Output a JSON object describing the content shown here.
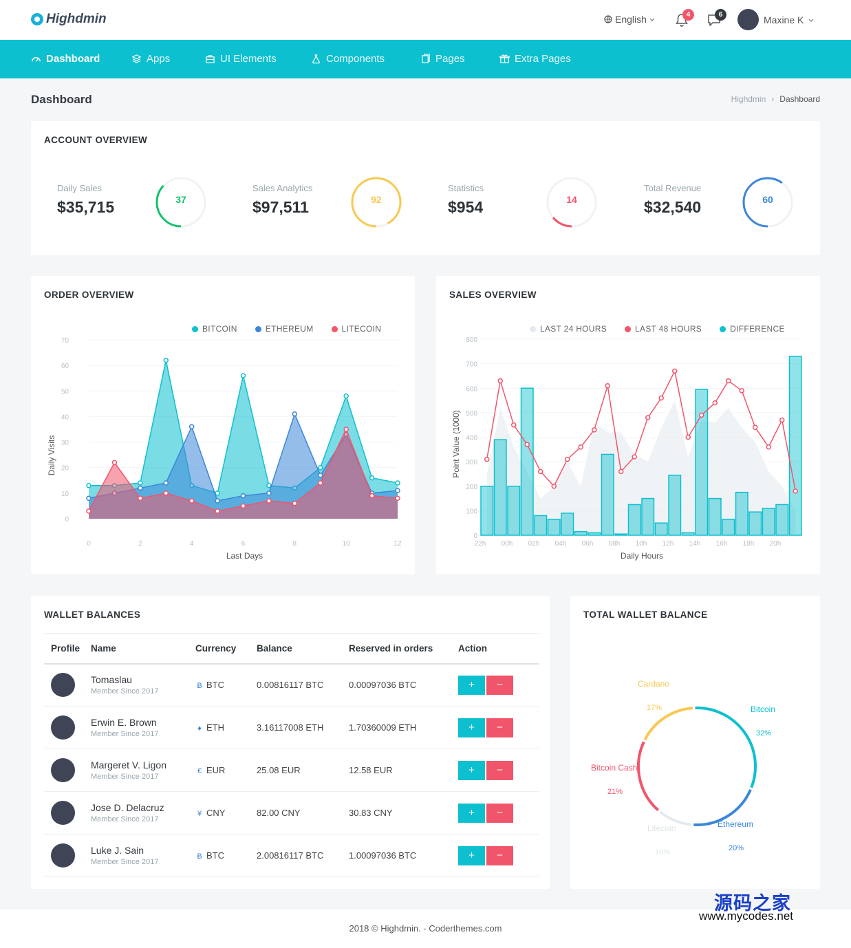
{
  "header": {
    "logo": "Highdmin",
    "language": "English",
    "notifications_count": "4",
    "messages_count": "6",
    "user_name": "Maxine K"
  },
  "nav": [
    {
      "label": "Dashboard",
      "icon": "speedometer-icon",
      "active": true
    },
    {
      "label": "Apps",
      "icon": "layers-icon"
    },
    {
      "label": "UI Elements",
      "icon": "briefcase-icon"
    },
    {
      "label": "Components",
      "icon": "flask-icon"
    },
    {
      "label": "Pages",
      "icon": "documents-icon"
    },
    {
      "label": "Extra Pages",
      "icon": "gift-icon"
    }
  ],
  "page": {
    "title": "Dashboard",
    "breadcrumb": [
      "Highdmin",
      "Dashboard"
    ]
  },
  "account": {
    "title": "ACCOUNT OVERVIEW",
    "stats": [
      {
        "label": "Daily Sales",
        "value": "$35,715",
        "percent": 37,
        "percent_label": "37",
        "color": "#10c469"
      },
      {
        "label": "Sales Analytics",
        "value": "$97,511",
        "percent": 92,
        "percent_label": "92",
        "color": "#f9c851"
      },
      {
        "label": "Statistics",
        "value": "$954",
        "percent": 14,
        "percent_label": "14",
        "color": "#f1556c"
      },
      {
        "label": "Total Revenue",
        "value": "$32,540",
        "percent": 60,
        "percent_label": "60",
        "color": "#3c86d8"
      }
    ]
  },
  "order": {
    "title": "ORDER OVERVIEW",
    "chart_data": {
      "type": "area",
      "xlabel": "Last Days",
      "ylabel": "Daily Visits",
      "ylim": [
        0,
        70
      ],
      "xlim": [
        0,
        12
      ],
      "y_ticks": [
        "0",
        "10",
        "20",
        "30",
        "40",
        "50",
        "60",
        "70"
      ],
      "x_ticks": [
        "0",
        "2",
        "4",
        "6",
        "8",
        "10",
        "12"
      ],
      "legend_position": "top-right",
      "x": [
        0,
        1,
        2,
        3,
        4,
        5,
        6,
        7,
        8,
        9,
        10,
        11,
        12
      ],
      "series": [
        {
          "name": "BITCOIN",
          "color": "#0dc0cf",
          "values": [
            13,
            13,
            14,
            62,
            13,
            10,
            56,
            13,
            12,
            20,
            48,
            16,
            14
          ]
        },
        {
          "name": "ETHEREUM",
          "color": "#3c86d8",
          "values": [
            8,
            10,
            12,
            14,
            36,
            7,
            9,
            10,
            41,
            17,
            33,
            10,
            11
          ]
        },
        {
          "name": "LITECOIN",
          "color": "#f1556c",
          "values": [
            3,
            22,
            8,
            10,
            7,
            3,
            5,
            7,
            6,
            14,
            35,
            9,
            8
          ]
        }
      ]
    }
  },
  "sales": {
    "title": "SALES OVERVIEW",
    "chart_data": {
      "type": "bar",
      "xlabel": "Daily Hours",
      "ylabel": "Point Value (1000)",
      "ylim": [
        0,
        800
      ],
      "y_ticks": [
        "0",
        "100",
        "200",
        "300",
        "400",
        "500",
        "600",
        "700",
        "800"
      ],
      "x_ticks": [
        "22h",
        "00h",
        "02h",
        "04h",
        "06h",
        "08h",
        "10h",
        "12h",
        "14h",
        "16h",
        "18h",
        "20h"
      ],
      "legend_position": "top-right",
      "series": [
        {
          "name": "LAST 24 HOURS",
          "color": "#e3eaef",
          "type": "area",
          "values": [
            250,
            520,
            360,
            260,
            150,
            200,
            300,
            200,
            460,
            420,
            420,
            330,
            300,
            440,
            550,
            320,
            470,
            460,
            520,
            440,
            380,
            260,
            200,
            100
          ]
        },
        {
          "name": "LAST 48 HOURS",
          "color": "#f1556c",
          "type": "line",
          "values": [
            310,
            630,
            450,
            370,
            260,
            200,
            310,
            360,
            430,
            610,
            260,
            320,
            480,
            560,
            670,
            400,
            490,
            540,
            630,
            590,
            440,
            360,
            470,
            180
          ]
        },
        {
          "name": "DIFFERENCE",
          "color": "#0dc0cf",
          "type": "bar",
          "values": [
            200,
            390,
            200,
            600,
            80,
            65,
            90,
            15,
            10,
            330,
            5,
            125,
            150,
            50,
            245,
            10,
            595,
            150,
            65,
            175,
            95,
            110,
            125,
            730
          ]
        }
      ]
    }
  },
  "wallet": {
    "title": "WALLET BALANCES",
    "columns": [
      "Profile",
      "Name",
      "Currency",
      "Balance",
      "Reserved in orders",
      "Action"
    ],
    "rows": [
      {
        "name": "Tomaslau",
        "since": "Member Since 2017",
        "currency_icon": "Ƀ",
        "currency": "BTC",
        "balance": "0.00816117 BTC",
        "reserved": "0.00097036 BTC"
      },
      {
        "name": "Erwin E. Brown",
        "since": "Member Since 2017",
        "currency_icon": "♦",
        "currency": "ETH",
        "balance": "3.16117008 ETH",
        "reserved": "1.70360009 ETH"
      },
      {
        "name": "Margeret V. Ligon",
        "since": "Member Since 2017",
        "currency_icon": "€",
        "currency": "EUR",
        "balance": "25.08 EUR",
        "reserved": "12.58 EUR"
      },
      {
        "name": "Jose D. Delacruz",
        "since": "Member Since 2017",
        "currency_icon": "¥",
        "currency": "CNY",
        "balance": "82.00 CNY",
        "reserved": "30.83 CNY"
      },
      {
        "name": "Luke J. Sain",
        "since": "Member Since 2017",
        "currency_icon": "Ƀ",
        "currency": "BTC",
        "balance": "2.00816117 BTC",
        "reserved": "1.00097036 BTC"
      }
    ],
    "plus": "+",
    "minus": "−"
  },
  "total": {
    "title": "TOTAL WALLET BALANCE",
    "chart_data": {
      "type": "pie",
      "series": [
        {
          "name": "Bitcoin",
          "percent_label": "32%",
          "value": 32,
          "color": "#0dc0cf"
        },
        {
          "name": "Ethereum",
          "percent_label": "20%",
          "value": 20,
          "color": "#3c86d8"
        },
        {
          "name": "Litecoin",
          "percent_label": "10%",
          "value": 10,
          "color": "#e3eaef"
        },
        {
          "name": "Bitcoin Cash",
          "percent_label": "21%",
          "value": 21,
          "color": "#f1556c"
        },
        {
          "name": "Cardano",
          "percent_label": "17%",
          "value": 17,
          "color": "#f9c851"
        }
      ]
    }
  },
  "footer": "2018 © Highdmin. - Coderthemes.com",
  "watermark": {
    "line1": "源码之家",
    "line2": "www.mycodes.net"
  }
}
